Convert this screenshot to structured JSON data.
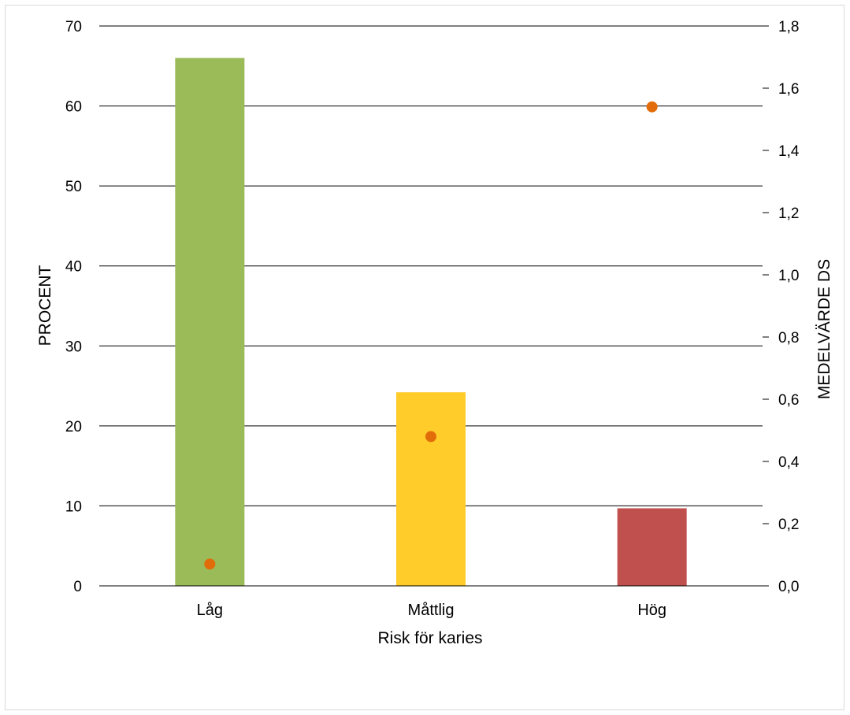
{
  "chart_data": {
    "type": "bar",
    "categories": [
      "Låg",
      "Måttlig",
      "Hög"
    ],
    "xlabel": "Risk för karies",
    "series": [
      {
        "axis": "left",
        "mark": "bar",
        "values": [
          66.0,
          24.2,
          9.7
        ],
        "colors": [
          "#9BBB59",
          "#FFCC29",
          "#C0504D"
        ]
      },
      {
        "axis": "right",
        "mark": "point",
        "values": [
          0.07,
          0.48,
          1.54
        ],
        "color": "#E36C0A"
      }
    ],
    "y_left": {
      "label": "PROCENT",
      "lim": [
        0,
        70
      ],
      "ticks": [
        "0",
        "10",
        "20",
        "30",
        "40",
        "50",
        "60",
        "70"
      ]
    },
    "y_right": {
      "label": "MEDELVÄRDE DS",
      "lim": [
        0,
        1.8
      ],
      "ticks": [
        "0,0",
        "0,2",
        "0,4",
        "0,6",
        "0,8",
        "1,0",
        "1,2",
        "1,4",
        "1,6",
        "1,8"
      ]
    },
    "grid": true,
    "legend": "none"
  }
}
